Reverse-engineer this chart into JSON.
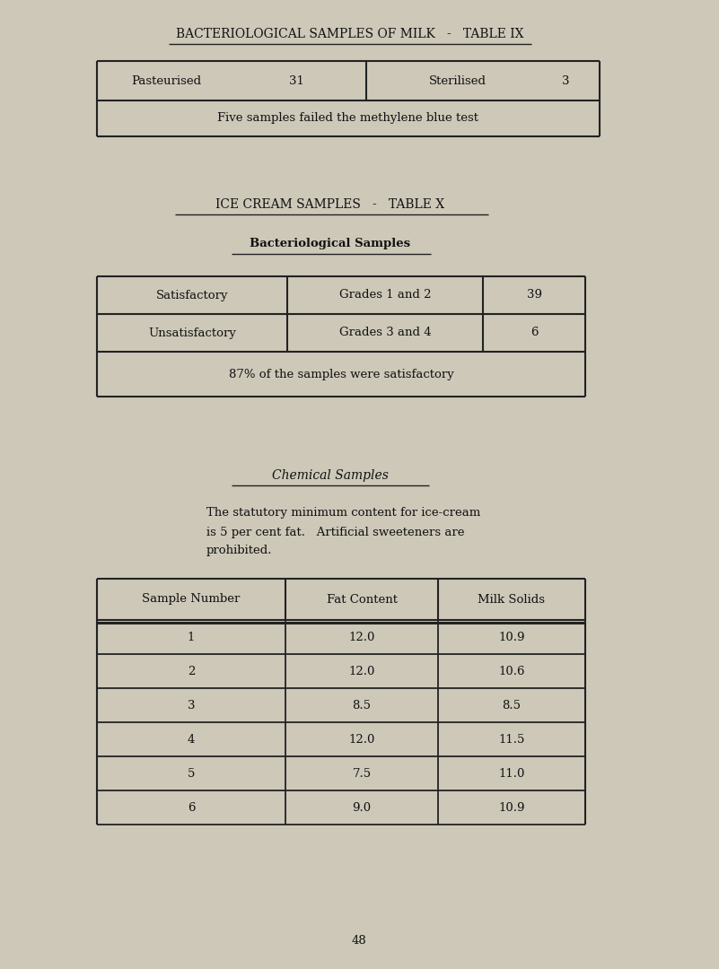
{
  "bg_color": "#cdc8b8",
  "page_number": "48",
  "title1": "BACTERIOLOGICAL SAMPLES OF MILK   -   TABLE IX",
  "table1_row1": [
    "Pasteurised",
    "31",
    "Sterilised",
    "3"
  ],
  "table1_row2": "Five samples failed the methylene blue test",
  "title2": "ICE CREAM SAMPLES   -   TABLE X",
  "subtitle2": "Bacteriological Samples",
  "t2_row1": [
    "Satisfactory",
    "Grades 1 and 2",
    "39"
  ],
  "t2_row2": [
    "Unsatisfactory",
    "Grades 3 and 4",
    "6"
  ],
  "t2_row3": "87% of the samples were satisfactory",
  "section3_title": "Chemical Samples",
  "section3_lines": [
    "The statutory minimum content for ice-cream",
    "is 5 per cent fat.   Artificial sweeteners are",
    "prohibited."
  ],
  "table3_headers": [
    "Sample Number",
    "Fat Content",
    "Milk Solids"
  ],
  "table3_rows": [
    [
      "1",
      "12.0",
      "10.9"
    ],
    [
      "2",
      "12.0",
      "10.6"
    ],
    [
      "3",
      "8.5",
      "8.5"
    ],
    [
      "4",
      "12.0",
      "11.5"
    ],
    [
      "5",
      "7.5",
      "11.0"
    ],
    [
      "6",
      "9.0",
      "10.9"
    ]
  ],
  "text_color": "#111111",
  "line_color": "#222222",
  "fs_title": 10,
  "fs_body": 9.5,
  "fs_sub": 9.5
}
